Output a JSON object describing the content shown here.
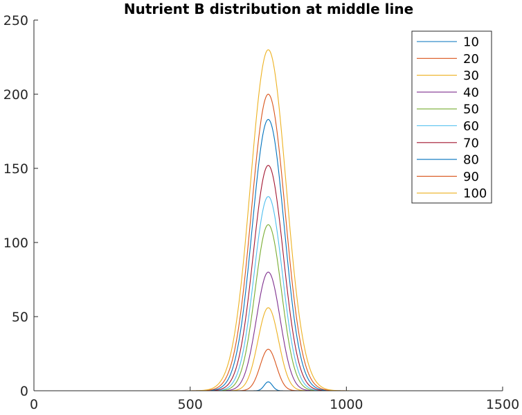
{
  "chart_data": {
    "type": "line",
    "title": "Nutrient B distribution at middle line",
    "xlabel": "",
    "ylabel": "",
    "xlim": [
      0,
      1500
    ],
    "ylim": [
      0,
      250
    ],
    "x_ticks": [
      0,
      500,
      1000,
      1500
    ],
    "y_ticks": [
      0,
      50,
      100,
      150,
      200,
      250
    ],
    "grid": false,
    "legend_position": "top-right",
    "curve_center": 750,
    "series": [
      {
        "name": "10",
        "color": "#0072BD",
        "peak": 6,
        "spread": 13
      },
      {
        "name": "20",
        "color": "#D95319",
        "peak": 28,
        "spread": 26
      },
      {
        "name": "30",
        "color": "#EDB120",
        "peak": 56,
        "spread": 33
      },
      {
        "name": "40",
        "color": "#7E2F8E",
        "peak": 80,
        "spread": 38
      },
      {
        "name": "50",
        "color": "#77AC30",
        "peak": 112,
        "spread": 42
      },
      {
        "name": "60",
        "color": "#4DBEEE",
        "peak": 131,
        "spread": 45
      },
      {
        "name": "70",
        "color": "#A2142F",
        "peak": 152,
        "spread": 48
      },
      {
        "name": "80",
        "color": "#0072BD",
        "peak": 183,
        "spread": 51
      },
      {
        "name": "90",
        "color": "#D95319",
        "peak": 200,
        "spread": 54
      },
      {
        "name": "100",
        "color": "#EDB120",
        "peak": 230,
        "spread": 57
      }
    ]
  }
}
